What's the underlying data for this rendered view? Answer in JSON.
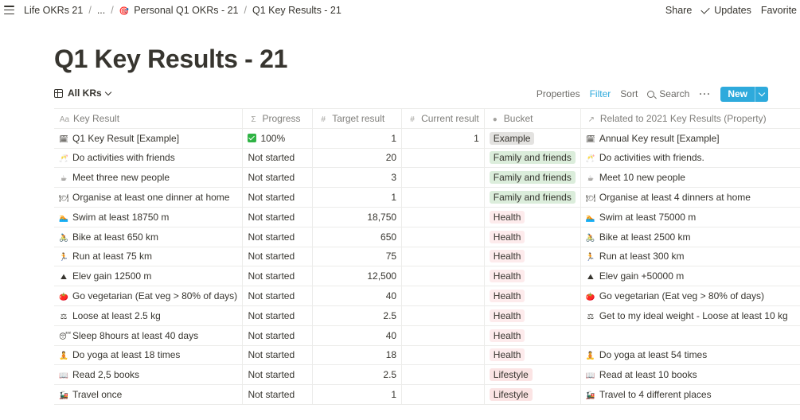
{
  "breadcrumb": {
    "items": [
      {
        "label": "Life OKRs 21"
      },
      {
        "label": "..."
      },
      {
        "label": "Personal Q1 OKRs - 21",
        "icon": "target-icon"
      },
      {
        "label": "Q1 Key Results - 21"
      }
    ]
  },
  "topbar": {
    "share": "Share",
    "updates": "Updates",
    "favorite": "Favorite"
  },
  "page": {
    "title": "Q1 Key Results - 21"
  },
  "view": {
    "name": "All KRs"
  },
  "actions": {
    "properties": "Properties",
    "filter": "Filter",
    "sort": "Sort",
    "search": "Search",
    "more": "···",
    "new": "New"
  },
  "colors": {
    "accent": "#2eaadc",
    "example_tag": "#e3e2e0",
    "family_tag": "#dbeddb",
    "health_tag": "#fdebec",
    "lifestyle_tag": "#fbe4e4"
  },
  "table": {
    "columns": [
      {
        "label": "Key Result",
        "icon": "Aa"
      },
      {
        "label": "Progress",
        "icon": "Σ"
      },
      {
        "label": "Target result",
        "icon": "#"
      },
      {
        "label": "Current result",
        "icon": "#"
      },
      {
        "label": "Bucket",
        "icon": "●"
      },
      {
        "label": "Related to 2021 Key Results (Property)",
        "icon": "↗"
      }
    ],
    "rows": [
      {
        "emoji": "🗓",
        "kr": "Q1 Key Result [Example]",
        "progress": "100%",
        "done": true,
        "target": "1",
        "current": "1",
        "bucket": "Example",
        "bucket_color": "#e3e2e0",
        "related_emoji": "🗓",
        "related": "Annual Key result [Example]"
      },
      {
        "emoji": "🥂",
        "kr": "Do activities with friends",
        "progress": "Not started",
        "target": "20",
        "current": "",
        "bucket": "Family and friends",
        "bucket_color": "#dbeddb",
        "related_emoji": "🥂",
        "related": "Do activities with friends."
      },
      {
        "emoji": "☕",
        "kr": "Meet three new people",
        "progress": "Not started",
        "target": "3",
        "current": "",
        "bucket": "Family and friends",
        "bucket_color": "#dbeddb",
        "related_emoji": "☕",
        "related": "Meet 10 new people"
      },
      {
        "emoji": "🍽",
        "kr": "Organise at least one dinner at home",
        "progress": "Not started",
        "target": "1",
        "current": "",
        "bucket": "Family and friends",
        "bucket_color": "#dbeddb",
        "related_emoji": "🍽",
        "related": "Organise at least 4 dinners at home"
      },
      {
        "emoji": "🏊",
        "kr": "Swim at least 18750 m",
        "progress": "Not started",
        "target": "18,750",
        "current": "",
        "bucket": "Health",
        "bucket_color": "#fdebec",
        "related_emoji": "🏊",
        "related": "Swim at least 75000 m"
      },
      {
        "emoji": "🚴",
        "kr": "Bike at least 650 km",
        "progress": "Not started",
        "target": "650",
        "current": "",
        "bucket": "Health",
        "bucket_color": "#fdebec",
        "related_emoji": "🚴",
        "related": "Bike at least 2500 km"
      },
      {
        "emoji": "🏃",
        "kr": "Run at least 75 km",
        "progress": "Not started",
        "target": "75",
        "current": "",
        "bucket": "Health",
        "bucket_color": "#fdebec",
        "related_emoji": "🏃",
        "related": "Run at least 300 km"
      },
      {
        "emoji": "⛰",
        "kr": "Elev gain 12500 m",
        "progress": "Not started",
        "target": "12,500",
        "current": "",
        "bucket": "Health",
        "bucket_color": "#fdebec",
        "related_emoji": "⛰",
        "related": "Elev gain +50000 m"
      },
      {
        "emoji": "🍅",
        "kr": "Go vegetarian (Eat veg > 80% of days)",
        "progress": "Not started",
        "target": "40",
        "current": "",
        "bucket": "Health",
        "bucket_color": "#fdebec",
        "related_emoji": "🍅",
        "related": "Go vegetarian (Eat veg > 80% of days)"
      },
      {
        "emoji": "⚖",
        "kr": "Loose at least 2.5 kg",
        "progress": "Not started",
        "target": "2.5",
        "current": "",
        "bucket": "Health",
        "bucket_color": "#fdebec",
        "related_emoji": "⚖",
        "related": "Get to my ideal weight - Loose at least 10 kg"
      },
      {
        "emoji": "😴",
        "kr": "Sleep 8hours at least 40 days",
        "progress": "Not started",
        "target": "40",
        "current": "",
        "bucket": "Health",
        "bucket_color": "#fdebec",
        "related_emoji": "",
        "related": ""
      },
      {
        "emoji": "🧘",
        "kr": "Do yoga at least 18 times",
        "progress": "Not started",
        "target": "18",
        "current": "",
        "bucket": "Health",
        "bucket_color": "#fdebec",
        "related_emoji": "🧘",
        "related": "Do yoga at least 54 times"
      },
      {
        "emoji": "📖",
        "kr": "Read 2,5 books",
        "progress": "Not started",
        "target": "2.5",
        "current": "",
        "bucket": "Lifestyle",
        "bucket_color": "#fbe4e4",
        "related_emoji": "📖",
        "related": "Read at least 10 books"
      },
      {
        "emoji": "🚂",
        "kr": "Travel once",
        "progress": "Not started",
        "target": "1",
        "current": "",
        "bucket": "Lifestyle",
        "bucket_color": "#fbe4e4",
        "related_emoji": "🚂",
        "related": "Travel to 4 different places"
      }
    ]
  }
}
